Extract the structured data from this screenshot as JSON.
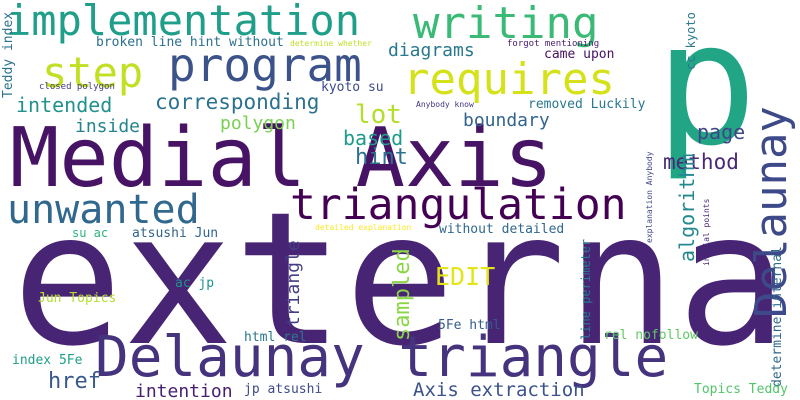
{
  "words": [
    {
      "id": "external",
      "text": "external",
      "color": "#482475"
    },
    {
      "id": "medial-axis",
      "text": "Medial Axis",
      "color": "#471365"
    },
    {
      "id": "p",
      "text": "p",
      "color": "#21a585"
    },
    {
      "id": "delaunay-triangle",
      "text": "Delaunay triangle",
      "color": "#46337e"
    },
    {
      "id": "implementation",
      "text": "implementation",
      "color": "#1f9e89"
    },
    {
      "id": "writing",
      "text": "writing",
      "color": "#3aba76"
    },
    {
      "id": "program",
      "text": "program",
      "color": "#3b528b"
    },
    {
      "id": "requires",
      "text": "requires",
      "color": "#d5e21a"
    },
    {
      "id": "step",
      "text": "step",
      "color": "#c2df23"
    },
    {
      "id": "triangulation",
      "text": "triangulation",
      "color": "#440154"
    },
    {
      "id": "unwanted",
      "text": "unwanted",
      "color": "#31688e"
    },
    {
      "id": "delaunay-v",
      "text": "Delaunay",
      "color": "#3e4989"
    },
    {
      "id": "diagrams",
      "text": "diagrams",
      "color": "#2a788e"
    },
    {
      "id": "corresponding",
      "text": "corresponding",
      "color": "#2c728e"
    },
    {
      "id": "intended",
      "text": "intended",
      "color": "#21918c"
    },
    {
      "id": "inside",
      "text": "inside",
      "color": "#25838e"
    },
    {
      "id": "polygon",
      "text": "polygon",
      "color": "#7ad151"
    },
    {
      "id": "lot",
      "text": "lot",
      "color": "#b5de2b"
    },
    {
      "id": "based",
      "text": "based",
      "color": "#1e9b8a"
    },
    {
      "id": "hint",
      "text": "hint",
      "color": "#2c728e"
    },
    {
      "id": "boundary",
      "text": "boundary",
      "color": "#32648e"
    },
    {
      "id": "page",
      "text": "page",
      "color": "#3f4788"
    },
    {
      "id": "method",
      "text": "method",
      "color": "#482878"
    },
    {
      "id": "algorithm",
      "text": "algorithm",
      "color": "#23898e"
    },
    {
      "id": "edit",
      "text": "EDIT",
      "color": "#e5e419"
    },
    {
      "id": "sampled",
      "text": "sampled",
      "color": "#8bd646"
    },
    {
      "id": "triangle-v",
      "text": "triangle",
      "color": "#433e85"
    },
    {
      "id": "href",
      "text": "href",
      "color": "#38598c"
    },
    {
      "id": "intention",
      "text": "intention",
      "color": "#482071"
    },
    {
      "id": "axis-extraction",
      "text": "Axis extraction",
      "color": "#3b528b"
    },
    {
      "id": "broken-line",
      "text": "broken line hint without",
      "color": "#2d708e"
    },
    {
      "id": "determine-whether",
      "text": "determine whether",
      "color": "#bddf26"
    },
    {
      "id": "forgot-mentioning",
      "text": "forgot mentioning",
      "color": "#481b6d"
    },
    {
      "id": "came-upon",
      "text": "came upon",
      "color": "#471164"
    },
    {
      "id": "kyoto-su",
      "text": "kyoto su",
      "color": "#3e4a89"
    },
    {
      "id": "closed-polygon",
      "text": "closed polygon",
      "color": "#443a83"
    },
    {
      "id": "anybody-know",
      "text": "Anybody know",
      "color": "#463480"
    },
    {
      "id": "removed-luckily",
      "text": "removed Luckily",
      "color": "#2a788e"
    },
    {
      "id": "teddy-index",
      "text": "Teddy index",
      "color": "#2c728e"
    },
    {
      "id": "cc-kyoto",
      "text": "cc kyoto",
      "color": "#2a788e"
    },
    {
      "id": "explanation-anybody",
      "text": "explanation Anybody",
      "color": "#3f4788"
    },
    {
      "id": "initial-points",
      "text": "initial points",
      "color": "#482878"
    },
    {
      "id": "su-ac",
      "text": "su ac",
      "color": "#2fb47c"
    },
    {
      "id": "atsushi-jun",
      "text": "atsushi Jun",
      "color": "#33638d"
    },
    {
      "id": "detailed-explanation",
      "text": "detailed explanation",
      "color": "#fde725"
    },
    {
      "id": "without-detailed",
      "text": "without detailed",
      "color": "#31688e"
    },
    {
      "id": "line-perimeter",
      "text": "line perimeter",
      "color": "#2a788e"
    },
    {
      "id": "determine-internal",
      "text": "determine internal",
      "color": "#31688e"
    },
    {
      "id": "jun-topics",
      "text": "Jun Topics",
      "color": "#b5de2b"
    },
    {
      "id": "ac-jp",
      "text": "ac jp",
      "color": "#20928c"
    },
    {
      "id": "html-rel",
      "text": "html rel",
      "color": "#2a788e"
    },
    {
      "id": "5fe-html",
      "text": "5Fe html",
      "color": "#365c8d"
    },
    {
      "id": "rel-nofollow",
      "text": "rel nofollow",
      "color": "#5ec962"
    },
    {
      "id": "index-5fe",
      "text": "index 5Fe",
      "color": "#1f9e89"
    },
    {
      "id": "jp-atsushi",
      "text": "jp atsushi",
      "color": "#3e4a89"
    },
    {
      "id": "topics-teddy",
      "text": "Topics Teddy",
      "color": "#52c569"
    }
  ]
}
